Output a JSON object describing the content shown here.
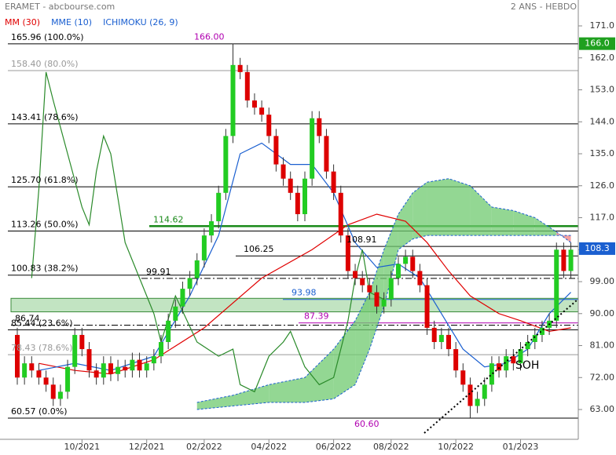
{
  "chart_data": {
    "type": "candlestick",
    "title": "ERAMET - abcbourse.com",
    "subtitle": "2 ANS - HEBDO",
    "legend": [
      {
        "label": "MM (30)",
        "color": "#e00000"
      },
      {
        "label": "MME (10)",
        "color": "#1a5fd0"
      },
      {
        "label": "ICHIMOKU (26, 9)",
        "color": "#1a5fd0"
      }
    ],
    "categories": [
      null,
      null,
      null,
      null,
      null,
      null,
      null,
      null,
      null,
      "10/2021",
      null,
      null,
      null,
      null,
      null,
      null,
      null,
      null,
      "12/2021",
      null,
      null,
      null,
      null,
      null,
      null,
      null,
      "02/2022",
      null,
      null,
      null,
      null,
      null,
      null,
      null,
      null,
      "04/2022",
      null,
      null,
      null,
      null,
      null,
      null,
      null,
      null,
      "06/2022",
      null,
      null,
      null,
      null,
      null,
      null,
      null,
      "08/2022",
      null,
      null,
      null,
      null,
      null,
      null,
      null,
      null,
      "10/2022",
      null,
      null,
      null,
      null,
      null,
      null,
      null,
      null,
      "01/2023",
      null,
      null,
      null,
      null,
      null,
      null,
      null
    ],
    "open": [
      84,
      72,
      76,
      74,
      72,
      70,
      66,
      68,
      75,
      84,
      80,
      74,
      72,
      76,
      73,
      75,
      74,
      77,
      74,
      76,
      78,
      82,
      88,
      92,
      97,
      100,
      105,
      112,
      116,
      124,
      140,
      160,
      158,
      150,
      148,
      146,
      140,
      132,
      128,
      124,
      118,
      128,
      145,
      140,
      130,
      124,
      112,
      102,
      100,
      98,
      96,
      92,
      94,
      100,
      104,
      106,
      102,
      98,
      86,
      82,
      84,
      80,
      74,
      70,
      64,
      66,
      70,
      76,
      74,
      78,
      76,
      80,
      82,
      84,
      86,
      88,
      108,
      102
    ],
    "high": [
      86,
      78,
      78,
      76,
      74,
      72,
      70,
      77,
      86,
      86,
      82,
      76,
      78,
      78,
      77,
      77,
      79,
      79,
      78,
      80,
      84,
      90,
      94,
      99,
      102,
      107,
      114,
      118,
      126,
      142,
      166,
      162,
      160,
      152,
      150,
      148,
      142,
      134,
      130,
      126,
      130,
      147,
      147,
      142,
      132,
      126,
      114,
      104,
      102,
      100,
      98,
      96,
      102,
      106,
      108,
      108,
      104,
      100,
      88,
      86,
      86,
      82,
      76,
      72,
      68,
      72,
      78,
      78,
      80,
      80,
      82,
      84,
      86,
      88,
      90,
      110,
      110,
      110
    ],
    "low": [
      70,
      70,
      72,
      70,
      68,
      64,
      64,
      66,
      73,
      78,
      72,
      70,
      70,
      71,
      71,
      72,
      72,
      72,
      72,
      74,
      76,
      80,
      86,
      90,
      95,
      98,
      103,
      110,
      114,
      122,
      138,
      156,
      148,
      146,
      144,
      138,
      130,
      126,
      122,
      116,
      116,
      126,
      138,
      128,
      122,
      110,
      100,
      98,
      96,
      94,
      90,
      90,
      92,
      98,
      102,
      100,
      96,
      84,
      80,
      80,
      78,
      72,
      68,
      60.6,
      62,
      64,
      68,
      72,
      72,
      74,
      74,
      78,
      80,
      82,
      84,
      86,
      100,
      100
    ],
    "close": [
      72,
      76,
      74,
      72,
      70,
      66,
      68,
      75,
      84,
      80,
      74,
      72,
      76,
      73,
      75,
      74,
      77,
      74,
      76,
      78,
      82,
      88,
      92,
      97,
      100,
      105,
      112,
      116,
      124,
      140,
      160,
      158,
      150,
      148,
      146,
      140,
      132,
      128,
      124,
      118,
      128,
      145,
      140,
      130,
      124,
      112,
      102,
      100,
      98,
      96,
      92,
      94,
      100,
      104,
      106,
      102,
      98,
      86,
      82,
      84,
      80,
      74,
      70,
      64,
      66,
      70,
      76,
      74,
      78,
      76,
      80,
      82,
      84,
      86,
      88,
      108,
      102,
      108
    ],
    "up_color": "#22cc22",
    "down_color": "#dd0000",
    "series": [
      {
        "name": "MM (30)",
        "color": "#e00000",
        "x": [
          3,
          8,
          13,
          19,
          26,
          34,
          41,
          46,
          50,
          54,
          57,
          60,
          63,
          67,
          70,
          74,
          77
        ],
        "values": [
          76,
          74,
          73,
          77,
          86,
          100,
          108,
          115,
          118,
          116,
          110,
          102,
          95,
          90,
          88,
          85,
          86
        ]
      },
      {
        "name": "MME (10)",
        "color": "#1a5fd0",
        "x": [
          3,
          8,
          13,
          19,
          24,
          28,
          31,
          34,
          38,
          41,
          44,
          47,
          50,
          53,
          56,
          59,
          62,
          65,
          68,
          71,
          74,
          77
        ],
        "values": [
          74,
          76,
          74,
          78,
          95,
          112,
          135,
          138,
          132,
          132,
          124,
          110,
          103,
          104,
          100,
          90,
          80,
          75,
          76,
          80,
          90,
          96
        ]
      },
      {
        "name": "Chikou",
        "color": "#2a8a2a",
        "x": [
          2,
          3,
          4,
          5,
          7,
          9,
          10,
          11,
          12,
          13,
          15,
          17,
          19,
          20,
          22,
          25,
          28,
          30,
          31,
          33,
          35,
          37,
          38,
          40,
          42,
          44,
          46,
          47,
          48,
          49,
          51
        ],
        "values": [
          100,
          125,
          158,
          150,
          135,
          120,
          115,
          130,
          140,
          135,
          110,
          100,
          90,
          82,
          95,
          82,
          78,
          80,
          70,
          68,
          78,
          82,
          85,
          75,
          70,
          72,
          88,
          100,
          108,
          96,
          94
        ]
      }
    ],
    "cloud": {
      "x": [
        25,
        30,
        35,
        40,
        44,
        47,
        49,
        51,
        53,
        55,
        57,
        60,
        63,
        66,
        69,
        72,
        75,
        77
      ],
      "span_a": [
        65,
        67,
        70,
        72,
        80,
        88,
        96,
        108,
        118,
        124,
        127,
        128,
        126,
        120,
        119,
        117,
        113,
        110
      ],
      "span_b": [
        63,
        64,
        65,
        65,
        66,
        70,
        80,
        92,
        108,
        111,
        112,
        112,
        112,
        112,
        112,
        112,
        112,
        112
      ],
      "up_color": "#6fc96f",
      "down_color": "#f08080",
      "line_color": "#1a5fd0"
    },
    "levels": [
      {
        "value": 165.96,
        "label": "165.96  (100.0%)",
        "color": "#000000"
      },
      {
        "value": 158.4,
        "label": "158.40  (80.0%)",
        "color": "#999999"
      },
      {
        "value": 143.41,
        "label": "143.41  (78.6%)",
        "color": "#000000"
      },
      {
        "value": 125.7,
        "label": "125.70  (61.8%)",
        "color": "#000000"
      },
      {
        "value": 113.26,
        "label": "113.26  (50.0%)",
        "color": "#000000"
      },
      {
        "value": 100.83,
        "label": "100.83  (38.2%)",
        "color": "#000000"
      },
      {
        "value": 85.44,
        "label": "85.44  (23.6%)",
        "color": "#000000"
      },
      {
        "value": 78.43,
        "label": "78.43  (78.6%)",
        "color": "#999999"
      },
      {
        "value": 60.57,
        "label": "60.57  (0.0%)",
        "color": "#000000"
      }
    ],
    "annotations": [
      {
        "value": 166.0,
        "label": "166.00",
        "color": "#b000b0"
      },
      {
        "value": 114.62,
        "label": "114.62",
        "color": "#1a8a1a"
      },
      {
        "value": 108.91,
        "label": "108.91",
        "color": "#000000"
      },
      {
        "value": 106.25,
        "label": "106.25",
        "color": "#000000"
      },
      {
        "value": 99.91,
        "label": "99.91",
        "color": "#000000"
      },
      {
        "value": 93.98,
        "label": "93.98",
        "color": "#1a5fd0"
      },
      {
        "value": 87.39,
        "label": "87.39",
        "color": "#b000b0"
      },
      {
        "value": 86.74,
        "label": "86.74",
        "color": "#000000"
      },
      {
        "value": 60.6,
        "label": "60.60",
        "color": "#b000b0"
      }
    ],
    "support_zone": [
      90.5,
      94.3
    ],
    "text_note": "SOH",
    "last_prices": [
      {
        "value": 166.0,
        "label": "166.0",
        "color": "#1fa01f"
      },
      {
        "value": 108.3,
        "label": "108.3",
        "color": "#1a5fd0"
      }
    ],
    "ylim": [
      61.5,
      174.5
    ],
    "yticks": [
      {
        "value": 171,
        "label": "171.0"
      },
      {
        "value": 162,
        "label": "162.0"
      },
      {
        "value": 153,
        "label": "153.0"
      },
      {
        "value": 144,
        "label": "144.0"
      },
      {
        "value": 135,
        "label": "135.0"
      },
      {
        "value": 126,
        "label": "126.0"
      },
      {
        "value": 117,
        "label": "117.0"
      },
      {
        "value": 108,
        "label": "108.0"
      },
      {
        "value": 99,
        "label": "99.00"
      },
      {
        "value": 90,
        "label": "90.00"
      },
      {
        "value": 81,
        "label": "81.00"
      },
      {
        "value": 72,
        "label": "72.00"
      },
      {
        "value": 63,
        "label": "63.00"
      }
    ]
  }
}
